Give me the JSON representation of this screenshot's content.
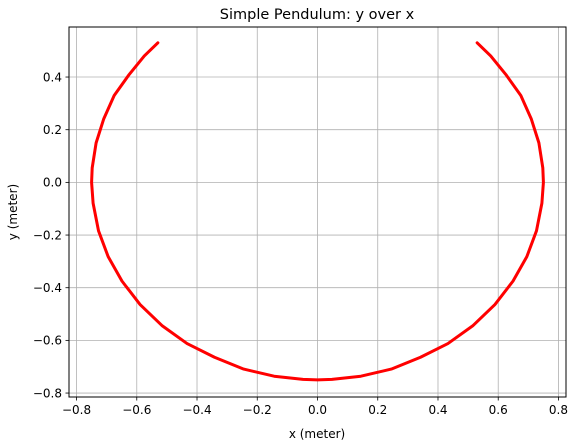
{
  "chart_data": {
    "type": "line",
    "title": "Simple Pendulum: y over x",
    "xlabel": "x (meter)",
    "ylabel": "y (meter)",
    "xlim": [
      -0.825,
      0.825
    ],
    "ylim": [
      -0.815,
      0.59
    ],
    "grid": true,
    "x_ticks": [
      -0.8,
      -0.6,
      -0.4,
      -0.2,
      0.0,
      0.2,
      0.4,
      0.6,
      0.8
    ],
    "x_tick_labels": [
      "−0.8",
      "−0.6",
      "−0.4",
      "−0.2",
      "0.0",
      "0.2",
      "0.4",
      "0.6",
      "0.8"
    ],
    "y_ticks": [
      -0.8,
      -0.6,
      -0.4,
      -0.2,
      0.0,
      0.2,
      0.4
    ],
    "y_tick_labels": [
      "−0.8",
      "−0.6",
      "−0.4",
      "−0.2",
      "0.0",
      "0.2",
      "0.4"
    ],
    "series": [
      {
        "color": "#ff0000",
        "x": [
          -0.53,
          -0.575,
          -0.625,
          -0.675,
          -0.71,
          -0.735,
          -0.748,
          -0.75,
          -0.745,
          -0.727,
          -0.695,
          -0.649,
          -0.589,
          -0.515,
          -0.433,
          -0.342,
          -0.245,
          -0.144,
          -0.048,
          0.0,
          0.048,
          0.144,
          0.245,
          0.342,
          0.433,
          0.515,
          0.589,
          0.649,
          0.695,
          0.727,
          0.745,
          0.75,
          0.748,
          0.735,
          0.71,
          0.675,
          0.625,
          0.575,
          0.53
        ],
        "y": [
          0.53,
          0.48,
          0.41,
          0.33,
          0.24,
          0.15,
          0.055,
          0.0,
          -0.079,
          -0.184,
          -0.282,
          -0.375,
          -0.464,
          -0.545,
          -0.612,
          -0.664,
          -0.709,
          -0.736,
          -0.748,
          -0.75,
          -0.748,
          -0.736,
          -0.709,
          -0.664,
          -0.612,
          -0.545,
          -0.464,
          -0.375,
          -0.282,
          -0.184,
          -0.079,
          0.0,
          0.055,
          0.15,
          0.24,
          0.33,
          0.41,
          0.48,
          0.53
        ]
      }
    ]
  }
}
